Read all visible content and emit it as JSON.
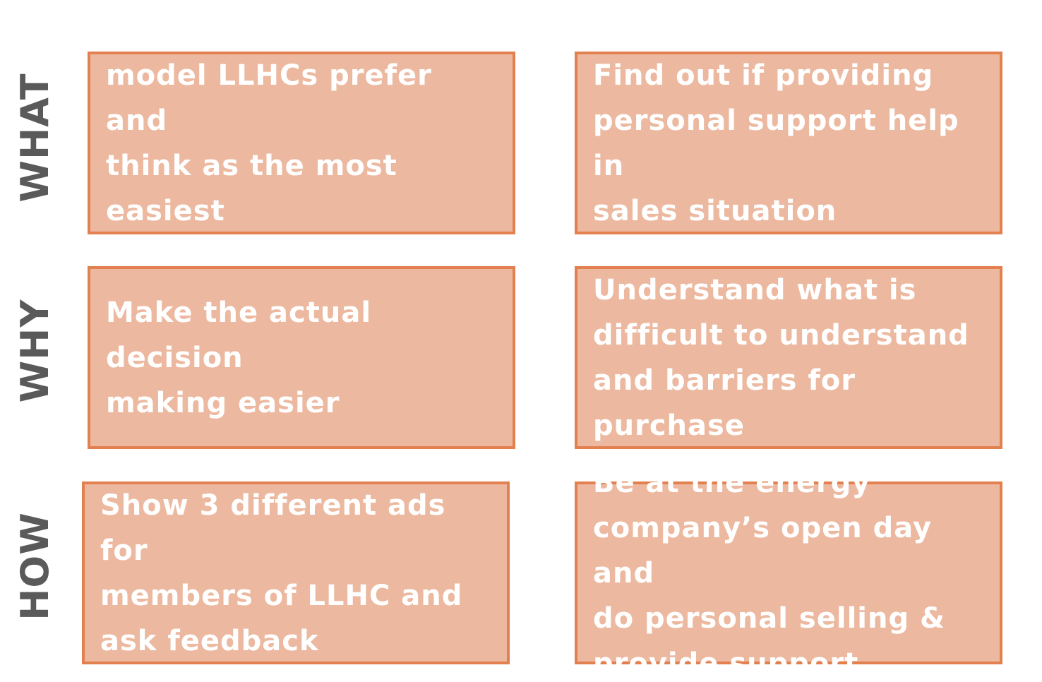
{
  "rows": {
    "what": {
      "label": "WHAT",
      "left": "Find out what sales\nmodel LLHCs prefer and\nthink as the most easiest\nto “buy”",
      "right": "Find out if providing\npersonal support help in\nsales situation"
    },
    "why": {
      "label": "WHY",
      "left": "Make the actual decision\nmaking easier",
      "right": "Understand what is\ndifficult  to understand\nand barriers for purchase"
    },
    "how": {
      "label": "HOW",
      "left": "Show 3 different  ads for\nmembers of LLHC and\nask feedback",
      "right": "Be at the energy\ncompany’s open day and\ndo personal selling &\nprovide support"
    }
  },
  "colors": {
    "box_fill": "#ecb9a0",
    "box_border": "#e2804f",
    "box_text": "#ffffff",
    "label_text": "#5a5a5a"
  }
}
